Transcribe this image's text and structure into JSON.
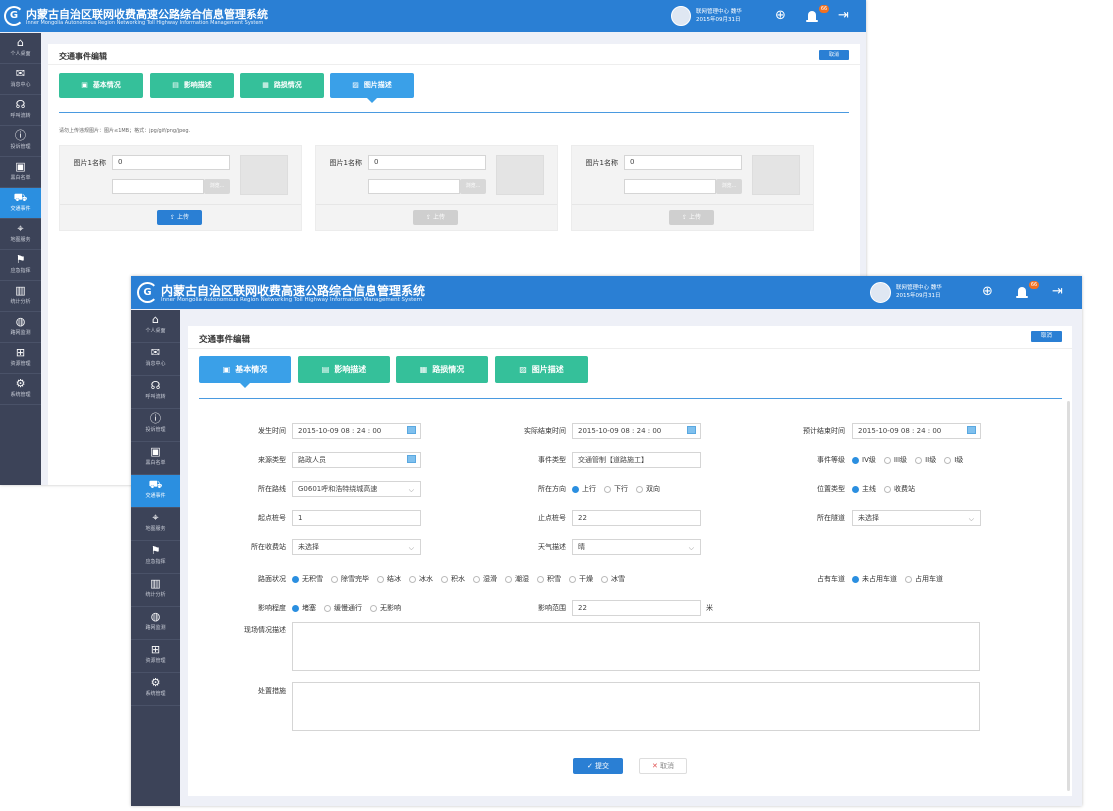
{
  "app": {
    "title": "内蒙古自治区联网收费高速公路综合信息管理系统",
    "subtitle": "Inner Mongolia Autonomous Region Networking Toll Highway Information Management System",
    "logo_letter": "G",
    "user": "联网管理中心 魏华",
    "date": "2015年09月31日",
    "notification_count": "66",
    "colors": {
      "header": "#2a7fd4",
      "sidebar": "#3c4358",
      "tab_green": "#35c09a",
      "tab_active": "#3aa0e8"
    }
  },
  "sidebar": {
    "items": [
      {
        "label": "个人桌面",
        "icon": "home-icon"
      },
      {
        "label": "消息中心",
        "icon": "message-icon"
      },
      {
        "label": "呼叫流转",
        "icon": "headset-icon"
      },
      {
        "label": "投诉管理",
        "icon": "alert-icon"
      },
      {
        "label": "黑白名单",
        "icon": "contact-icon"
      },
      {
        "label": "交通事件",
        "icon": "car-icon",
        "active": true
      },
      {
        "label": "地图服务",
        "icon": "map-icon"
      },
      {
        "label": "应急指挥",
        "icon": "command-icon"
      },
      {
        "label": "统计分析",
        "icon": "chart-icon"
      },
      {
        "label": "路网监测",
        "icon": "globe-icon"
      },
      {
        "label": "资源管理",
        "icon": "sitemap-icon"
      },
      {
        "label": "系统管理",
        "icon": "gear-icon"
      }
    ]
  },
  "page": {
    "title": "交通事件编辑",
    "cancel": "取消",
    "tabs": [
      "基本情况",
      "影响描述",
      "路损情况",
      "图片描述"
    ]
  },
  "upload": {
    "hint": "请勿上传违规图片：图片≤1MB；格式：jpg/gif/png/jpeg.",
    "cards": [
      {
        "label": "图片1名称",
        "value": "0",
        "browse": "浏览...",
        "upload": "上传",
        "enabled": true
      },
      {
        "label": "图片1名称",
        "value": "0",
        "browse": "浏览...",
        "upload": "上传",
        "enabled": false
      },
      {
        "label": "图片1名称",
        "value": "0",
        "browse": "浏览...",
        "upload": "上传",
        "enabled": false
      }
    ]
  },
  "form": {
    "occur_time": {
      "label": "发生时间",
      "value": "2015-10-09   08 : 24 : 00"
    },
    "actual_end": {
      "label": "实际结束时间",
      "value": "2015-10-09   08 : 24 : 00"
    },
    "expected_end": {
      "label": "预计结束时间",
      "value": "2015-10-09   08 : 24 : 00"
    },
    "source_type": {
      "label": "来源类型",
      "value": "路政人员"
    },
    "event_type": {
      "label": "事件类型",
      "value": "交通管制【道路施工】"
    },
    "event_level": {
      "label": "事件等级",
      "options": [
        "IV级",
        "III级",
        "II级",
        "I级"
      ],
      "selected": 0
    },
    "route": {
      "label": "所在路线",
      "value": "G0601呼和浩特绕城高速"
    },
    "direction": {
      "label": "所在方向",
      "options": [
        "上行",
        "下行",
        "双向"
      ],
      "selected": 0
    },
    "position_type": {
      "label": "位置类型",
      "options": [
        "主线",
        "收费站"
      ],
      "selected": 0
    },
    "start_stake": {
      "label": "起点桩号",
      "value": "1"
    },
    "end_stake": {
      "label": "止点桩号",
      "value": "22"
    },
    "tunnel": {
      "label": "所在隧道",
      "value": "未选择"
    },
    "toll_station": {
      "label": "所在收费站",
      "value": "未选择"
    },
    "weather": {
      "label": "天气描述",
      "value": "晴"
    },
    "road_surface": {
      "label": "路面状况",
      "options": [
        "无积雪",
        "除雪完毕",
        "结冰",
        "冰水",
        "积水",
        "湿滑",
        "潮湿",
        "积雪",
        "干燥",
        "冰雪"
      ],
      "selected": 0
    },
    "lane": {
      "label": "占有车道",
      "options": [
        "未占用车道",
        "占用车道"
      ],
      "selected": 0
    },
    "impact": {
      "label": "影响程度",
      "options": [
        "堵塞",
        "缓慢通行",
        "无影响"
      ],
      "selected": 0
    },
    "impact_range": {
      "label": "影响范围",
      "value": "22",
      "unit": "米"
    },
    "scene": {
      "label": "现场情况描述",
      "value": ""
    },
    "measures": {
      "label": "处置措施",
      "value": ""
    },
    "submit": "提交",
    "cancel": "取消"
  }
}
